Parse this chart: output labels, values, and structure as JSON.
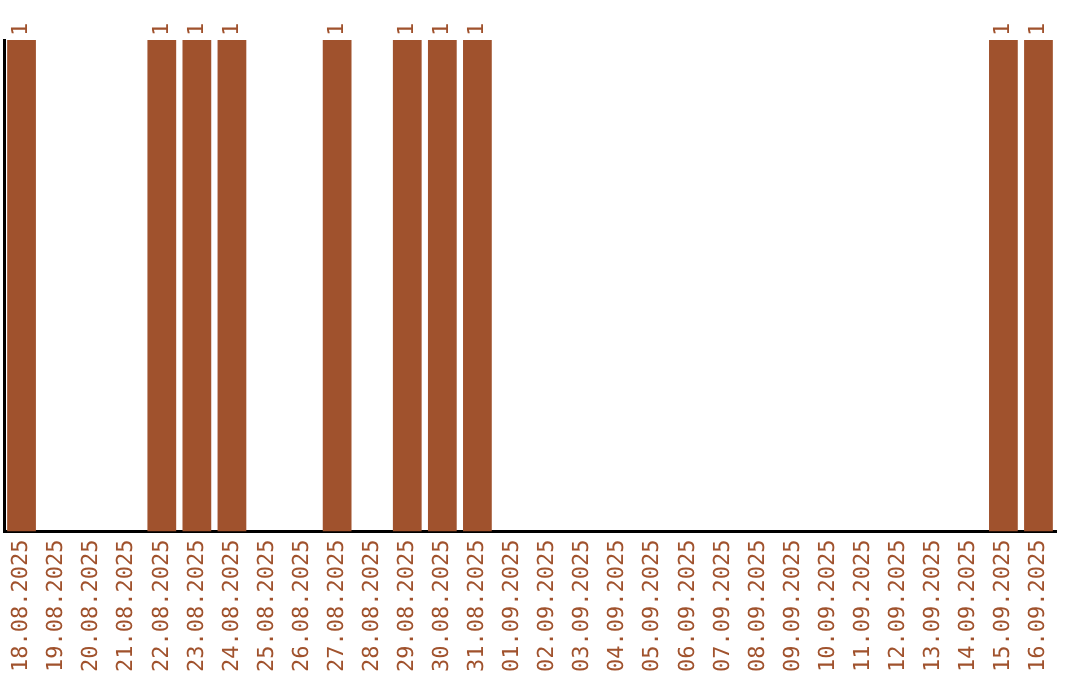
{
  "chart_data": {
    "type": "bar",
    "categories": [
      "18.08.2025",
      "19.08.2025",
      "20.08.2025",
      "21.08.2025",
      "22.08.2025",
      "23.08.2025",
      "24.08.2025",
      "25.08.2025",
      "26.08.2025",
      "27.08.2025",
      "28.08.2025",
      "29.08.2025",
      "30.08.2025",
      "31.08.2025",
      "01.09.2025",
      "02.09.2025",
      "03.09.2025",
      "04.09.2025",
      "05.09.2025",
      "06.09.2025",
      "07.09.2025",
      "08.09.2025",
      "09.09.2025",
      "10.09.2025",
      "11.09.2025",
      "12.09.2025",
      "13.09.2025",
      "14.09.2025",
      "15.09.2025",
      "16.09.2025"
    ],
    "values": [
      1,
      0,
      0,
      0,
      1,
      1,
      1,
      0,
      0,
      1,
      0,
      1,
      1,
      1,
      0,
      0,
      0,
      0,
      0,
      0,
      0,
      0,
      0,
      0,
      0,
      0,
      0,
      0,
      1,
      1
    ],
    "value_labels": [
      "1",
      null,
      null,
      null,
      "1",
      "1",
      "1",
      null,
      null,
      "1",
      null,
      "1",
      "1",
      "1",
      null,
      null,
      null,
      null,
      null,
      null,
      null,
      null,
      null,
      null,
      null,
      null,
      null,
      null,
      "1",
      "1"
    ],
    "color": "#a0522d",
    "tick_labels": "x",
    "grid": false,
    "legend": false
  }
}
